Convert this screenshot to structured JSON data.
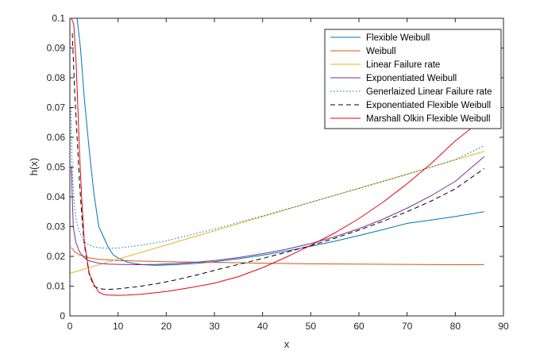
{
  "chart_data": {
    "type": "line",
    "title": "",
    "xlabel": "x",
    "ylabel": "h(x)",
    "xlim": [
      0,
      90
    ],
    "ylim": [
      0,
      0.1
    ],
    "xticks": [
      "0",
      "10",
      "20",
      "30",
      "40",
      "50",
      "60",
      "70",
      "80",
      "90"
    ],
    "yticks": [
      "0",
      "0.01",
      "0.02",
      "0.03",
      "0.04",
      "0.05",
      "0.06",
      "0.07",
      "0.08",
      "0.09",
      "0.1"
    ],
    "grid": false,
    "legend_position": "top-right",
    "series": [
      {
        "name": "Flexible Weibull",
        "color": "#0072BD",
        "dash": "solid",
        "x": [
          1.5,
          2.2,
          3,
          4,
          5,
          6,
          7,
          8,
          9,
          10,
          12,
          15,
          18,
          22,
          26,
          30,
          35,
          40,
          45,
          50,
          55,
          60,
          65,
          70,
          75,
          80,
          86
        ],
        "y": [
          0.1,
          0.09,
          0.073,
          0.056,
          0.041,
          0.03,
          0.0265,
          0.023,
          0.0205,
          0.0195,
          0.018,
          0.0172,
          0.017,
          0.0172,
          0.0176,
          0.0182,
          0.0192,
          0.0204,
          0.0218,
          0.0234,
          0.0251,
          0.027,
          0.029,
          0.0311,
          0.0322,
          0.0334,
          0.035
        ]
      },
      {
        "name": "Weibull",
        "color": "#D95319",
        "dash": "solid",
        "x": [
          0.3,
          1,
          2,
          4,
          6,
          8,
          10,
          15,
          20,
          30,
          40,
          50,
          60,
          70,
          80,
          86
        ],
        "y": [
          0.023,
          0.0215,
          0.0205,
          0.0195,
          0.019,
          0.0188,
          0.0186,
          0.0184,
          0.0182,
          0.018,
          0.0177,
          0.0175,
          0.0174,
          0.0173,
          0.0172,
          0.0172
        ]
      },
      {
        "name": "Linear Failure rate",
        "color": "#EDB120",
        "dash": "solid",
        "x": [
          0,
          86
        ],
        "y": [
          0.0143,
          0.0553
        ]
      },
      {
        "name": "Exponentiated Weibull",
        "color": "#7E2F8E",
        "dash": "solid",
        "x": [
          0.3,
          0.7,
          1.2,
          2,
          3,
          4,
          6,
          8,
          10,
          14,
          18,
          22,
          26,
          30,
          35,
          40,
          45,
          50,
          55,
          60,
          65,
          70,
          75,
          80,
          86
        ],
        "y": [
          0.05,
          0.03,
          0.025,
          0.0215,
          0.0195,
          0.0185,
          0.0177,
          0.0174,
          0.0173,
          0.0172,
          0.0173,
          0.0176,
          0.018,
          0.0186,
          0.0196,
          0.0209,
          0.0224,
          0.0243,
          0.0266,
          0.0293,
          0.0325,
          0.0362,
          0.0404,
          0.0452,
          0.0535
        ]
      },
      {
        "name": "Generlaized Linear Failure rate",
        "color": "#0072BD",
        "dash": "dotted",
        "x": [
          0.2,
          0.5,
          1,
          1.5,
          2,
          3,
          4,
          5,
          6,
          8,
          10,
          12,
          15,
          20,
          30,
          40,
          50,
          60,
          70,
          80,
          86
        ],
        "y": [
          0.07,
          0.048,
          0.036,
          0.031,
          0.028,
          0.025,
          0.0238,
          0.0232,
          0.0229,
          0.0227,
          0.0228,
          0.0232,
          0.0238,
          0.0252,
          0.0292,
          0.0336,
          0.0382,
          0.0428,
          0.0475,
          0.0525,
          0.0572
        ]
      },
      {
        "name": "Exponentiated Flexible Weibull",
        "color": "#000000",
        "dash": "dashed",
        "x": [
          0.5,
          1,
          1.5,
          2,
          2.5,
          3,
          4,
          5,
          6,
          7,
          8,
          10,
          14,
          18,
          22,
          26,
          30,
          35,
          40,
          45,
          50,
          55,
          60,
          65,
          70,
          75,
          80,
          86
        ],
        "y": [
          0.095,
          0.075,
          0.06,
          0.045,
          0.033,
          0.024,
          0.014,
          0.01,
          0.0092,
          0.009,
          0.0089,
          0.0091,
          0.0098,
          0.0108,
          0.0121,
          0.0136,
          0.0153,
          0.0173,
          0.0193,
          0.0214,
          0.0236,
          0.0261,
          0.0288,
          0.0318,
          0.035,
          0.0386,
          0.0427,
          0.0495
        ]
      },
      {
        "name": "Marshall Olkin Flexible Weibull",
        "color": "#E30613",
        "dash": "solid",
        "x": [
          0.3,
          0.8,
          1.3,
          2,
          2.5,
          3,
          4,
          5,
          6,
          7,
          8,
          10,
          12,
          15,
          20,
          25,
          30,
          35,
          40,
          45,
          50,
          55,
          60,
          65,
          70,
          75,
          80,
          86
        ],
        "y": [
          0.1,
          0.098,
          0.085,
          0.055,
          0.038,
          0.025,
          0.0145,
          0.0105,
          0.008,
          0.0072,
          0.007,
          0.0069,
          0.007,
          0.0073,
          0.0082,
          0.0095,
          0.011,
          0.0132,
          0.0162,
          0.0198,
          0.0237,
          0.0279,
          0.0327,
          0.0382,
          0.0444,
          0.0512,
          0.0588,
          0.0665
        ]
      }
    ]
  }
}
